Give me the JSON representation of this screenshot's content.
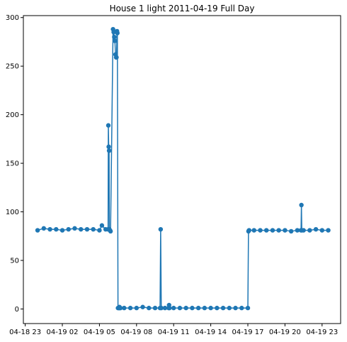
{
  "chart_data": {
    "type": "line",
    "title": "House 1 light 2011-04-19 Full Day",
    "xlabel": "",
    "ylabel": "",
    "x_unit": "hour",
    "xlim": [
      -1.15,
      24.5
    ],
    "ylim": [
      -15,
      302
    ],
    "x_ticks": [
      {
        "value": -1,
        "label": "04-18 23"
      },
      {
        "value": 2,
        "label": "04-19 02"
      },
      {
        "value": 5,
        "label": "04-19 05"
      },
      {
        "value": 8,
        "label": "04-19 08"
      },
      {
        "value": 11,
        "label": "04-19 11"
      },
      {
        "value": 14,
        "label": "04-19 14"
      },
      {
        "value": 17,
        "label": "04-19 17"
      },
      {
        "value": 20,
        "label": "04-19 20"
      },
      {
        "value": 23,
        "label": "04-19 23"
      }
    ],
    "y_ticks": [
      0,
      50,
      100,
      150,
      200,
      250,
      300
    ],
    "grid": false,
    "legend": "none",
    "colors": {
      "series": "#1f77b4",
      "axis": "#000000"
    },
    "series": [
      {
        "x": [
          0.0,
          0.5,
          1.0,
          1.5,
          2.0,
          2.5,
          3.0,
          3.5,
          4.0,
          4.5,
          5.0,
          5.2,
          5.5,
          5.7,
          5.72,
          5.75,
          5.78,
          5.8,
          5.85,
          5.9,
          6.1,
          6.15,
          6.2,
          6.25,
          6.3,
          6.35,
          6.38,
          6.42,
          6.45,
          6.5,
          6.55,
          6.6,
          6.62,
          6.65,
          6.7,
          7.0,
          7.5,
          8.0,
          8.5,
          9.0,
          9.5,
          9.9,
          9.95,
          10.0,
          10.3,
          10.6,
          10.63,
          10.66,
          11.0,
          11.5,
          12.0,
          12.5,
          13.0,
          13.5,
          14.0,
          14.5,
          15.0,
          15.5,
          16.0,
          16.5,
          17.0,
          17.05,
          17.1,
          17.5,
          18.0,
          18.5,
          19.0,
          19.5,
          20.0,
          20.5,
          21.0,
          21.3,
          21.33,
          21.36,
          21.5,
          22.0,
          22.5,
          23.0,
          23.5
        ],
        "values": [
          81,
          83,
          82,
          82,
          81,
          82,
          83,
          82,
          82,
          82,
          81,
          86,
          82,
          82,
          189,
          167,
          163,
          82,
          81,
          80,
          288,
          285,
          280,
          276,
          262,
          259,
          259,
          286,
          284,
          1,
          1,
          1,
          2,
          1,
          1,
          1,
          1,
          1,
          2,
          1,
          1,
          1,
          82,
          1,
          1,
          1,
          4,
          1,
          1,
          1,
          1,
          1,
          1,
          1,
          1,
          1,
          1,
          1,
          1,
          1,
          1,
          80,
          81,
          81,
          81,
          81,
          81,
          81,
          81,
          80,
          81,
          81,
          107,
          81,
          81,
          81,
          82,
          81,
          81
        ]
      }
    ]
  }
}
